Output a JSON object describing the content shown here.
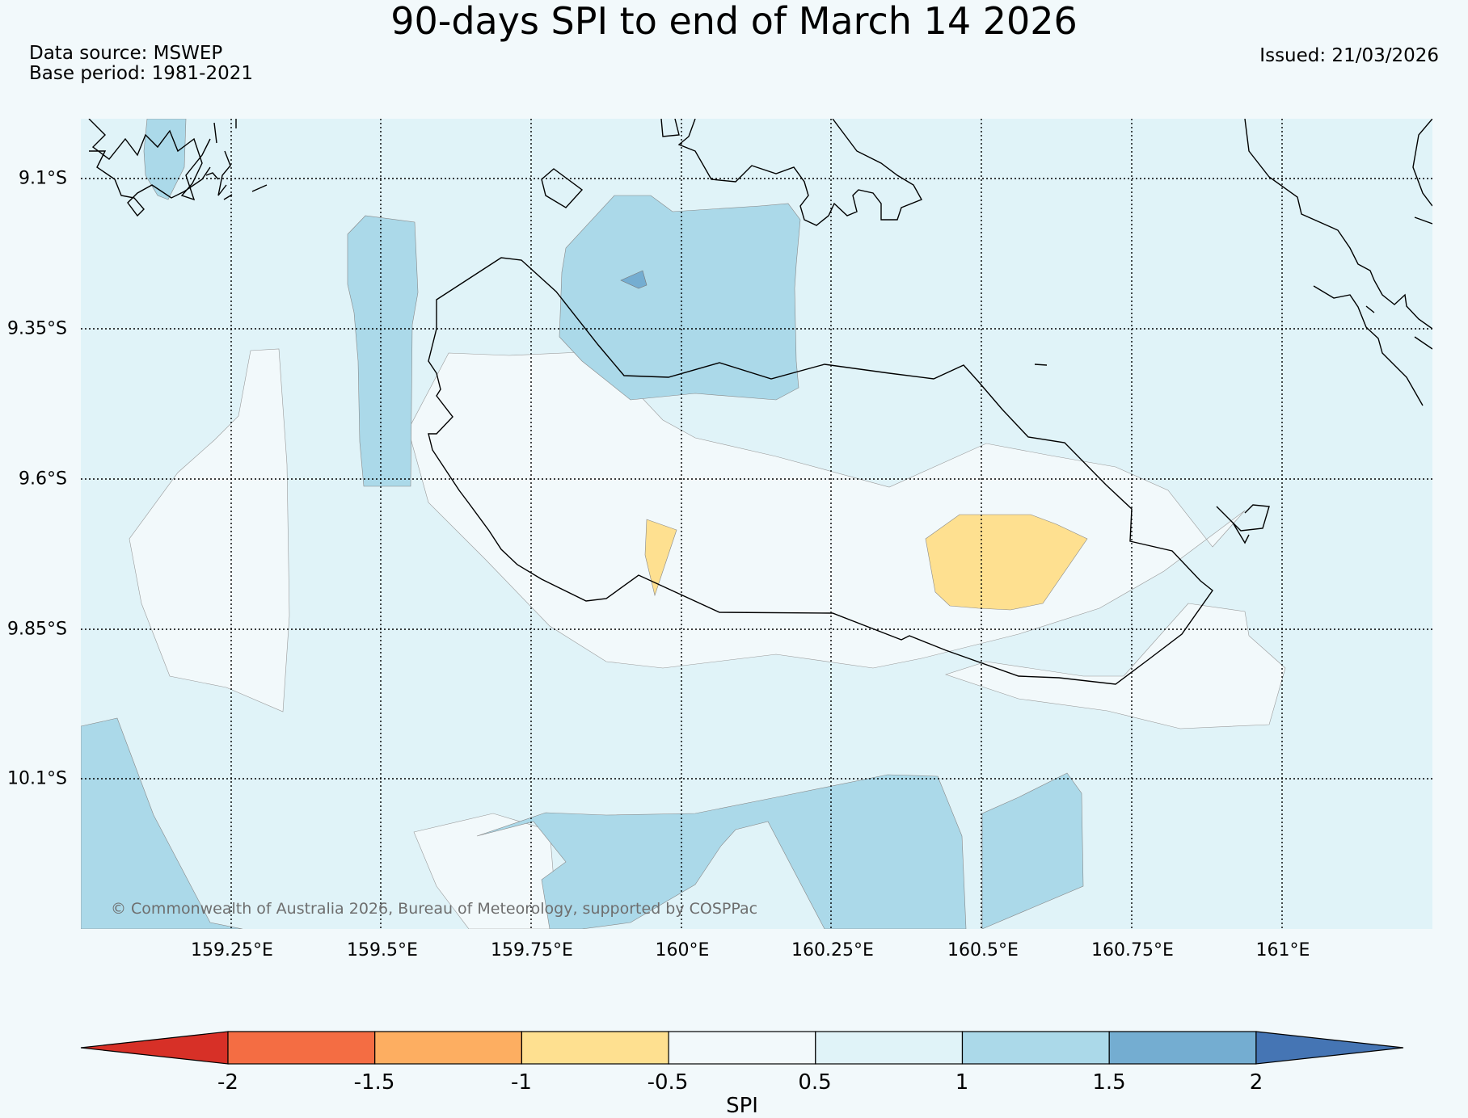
{
  "header": {
    "title": "90-days SPI to end of March 14 2026",
    "data_source": "Data source: MSWEP",
    "base_period": "Base period: 1981-2021",
    "issued": "Issued: 21/03/2026"
  },
  "map": {
    "copyright": "© Commonwealth of Australia 2026, Bureau of Meteorology, supported by COSPPac",
    "lat_labels": [
      "9.1°S",
      "9.35°S",
      "9.6°S",
      "9.85°S",
      "10.1°S"
    ],
    "lon_labels": [
      "159.25°E",
      "159.5°E",
      "159.75°E",
      "160°E",
      "160.25°E",
      "160.5°E",
      "160.75°E",
      "161°E"
    ],
    "background_class_color": "#e0f3f8"
  },
  "legend": {
    "label": "SPI",
    "ticks": [
      "-2",
      "-1.5",
      "-1",
      "-0.5",
      "0.5",
      "1",
      "1.5",
      "2"
    ],
    "colors": [
      "#d73027",
      "#f46d43",
      "#fdae61",
      "#fee090",
      "#f2f9fb",
      "#e0f3f8",
      "#abd9e9",
      "#74add1",
      "#4575b4"
    ]
  }
}
